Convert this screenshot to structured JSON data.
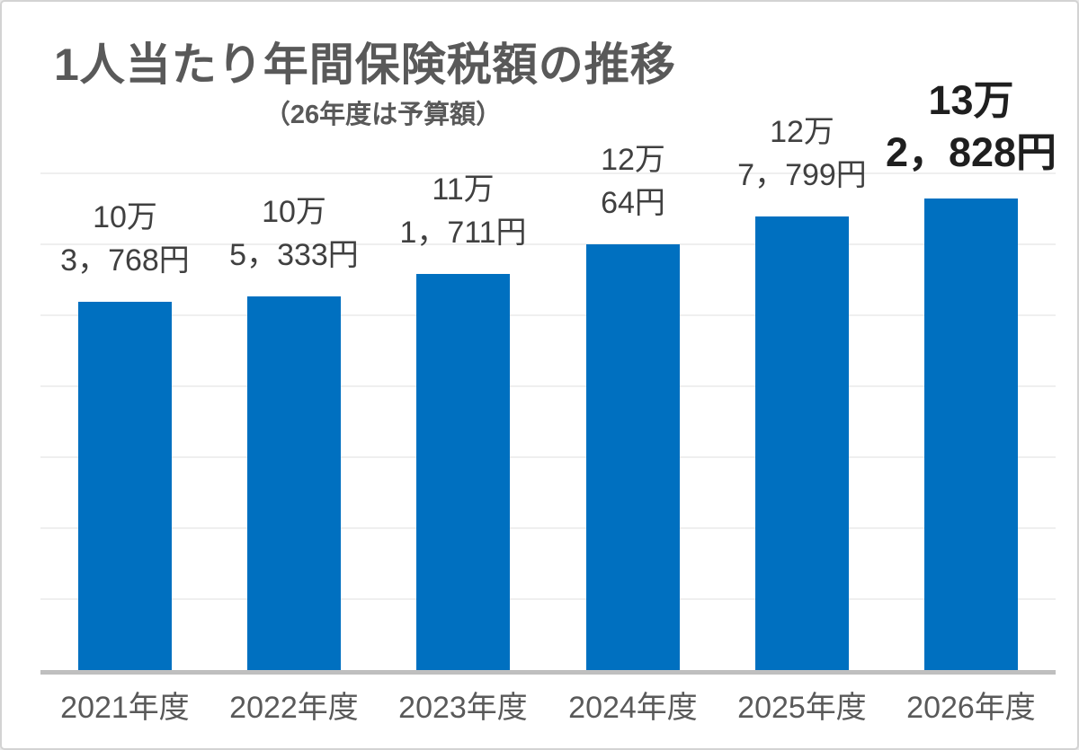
{
  "frame": {
    "background": "#ffffff",
    "border_color": "#d3d3d3"
  },
  "header": {
    "title": "1人当たり年間保険税額の推移",
    "subtitle": "（26年度は予算額）",
    "title_color": "#595959"
  },
  "chart_data": {
    "type": "bar",
    "title": "1人当たり年間保険税額の推移",
    "subtitle": "（26年度は予算額）",
    "categories": [
      "2021年度",
      "2022年度",
      "2023年度",
      "2024年度",
      "2025年度",
      "2026年度"
    ],
    "values": [
      103768,
      105333,
      111711,
      120064,
      127799,
      132828
    ],
    "unit": "円",
    "data_labels": [
      {
        "line1": "10万",
        "line2": "3，768円",
        "emphasis": false
      },
      {
        "line1": "10万",
        "line2": "5，333円",
        "emphasis": false
      },
      {
        "line1": "11万",
        "line2": "1，711円",
        "emphasis": false
      },
      {
        "line1": "12万",
        "line2": "64円",
        "emphasis": false
      },
      {
        "line1": "12万",
        "line2": "7，799円",
        "emphasis": false
      },
      {
        "line1": "13万",
        "line2": "2，828円",
        "emphasis": true
      }
    ],
    "ylim": [
      0,
      140000
    ],
    "gridline_step": 20000,
    "grid": true,
    "legend": "none",
    "y_axis_tick_labels": "none",
    "colors": {
      "bar": "#0070c0",
      "data_label": "#404040",
      "emphasis_label": "#1f1f1f",
      "x_axis_label": "#595959",
      "gridline": "#efefef",
      "axis_line": "#bfbfbf"
    }
  }
}
